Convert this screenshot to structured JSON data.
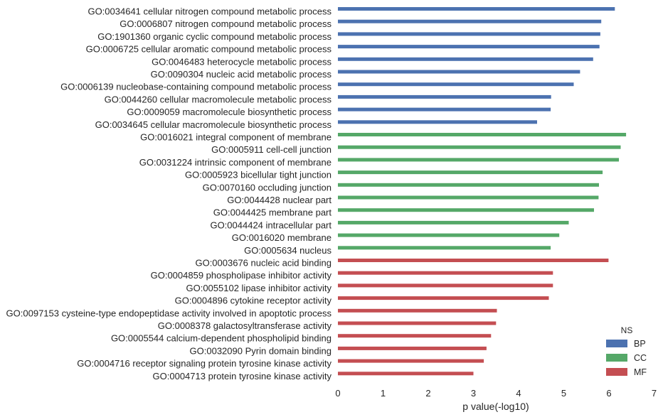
{
  "chart_data": {
    "type": "bar",
    "orientation": "horizontal",
    "xlabel": "p value(-log10)",
    "xlim": [
      0,
      7
    ],
    "xticks": [
      "0",
      "1",
      "2",
      "3",
      "4",
      "5",
      "6",
      "7"
    ],
    "grid": false,
    "legend_position": "bottom-right",
    "legend_title": "NS",
    "legend": [
      {
        "name": "BP",
        "color": "#4c72b0"
      },
      {
        "name": "CC",
        "color": "#55a868"
      },
      {
        "name": "MF",
        "color": "#c44e52"
      }
    ],
    "bars": [
      {
        "label": "GO:0034641 cellular nitrogen compound metabolic process",
        "value": 6.13,
        "ns": "BP"
      },
      {
        "label": "GO:0006807 nitrogen compound metabolic process",
        "value": 5.83,
        "ns": "BP"
      },
      {
        "label": "GO:1901360 organic cyclic compound metabolic process",
        "value": 5.81,
        "ns": "BP"
      },
      {
        "label": "GO:0006725 cellular aromatic compound metabolic process",
        "value": 5.79,
        "ns": "BP"
      },
      {
        "label": "GO:0046483 heterocycle metabolic process",
        "value": 5.65,
        "ns": "BP"
      },
      {
        "label": "GO:0090304 nucleic acid metabolic process",
        "value": 5.36,
        "ns": "BP"
      },
      {
        "label": "GO:0006139 nucleobase-containing compound metabolic process",
        "value": 5.22,
        "ns": "BP"
      },
      {
        "label": "GO:0044260 cellular macromolecule metabolic process",
        "value": 4.72,
        "ns": "BP"
      },
      {
        "label": "GO:0009059 macromolecule biosynthetic process",
        "value": 4.71,
        "ns": "BP"
      },
      {
        "label": "GO:0034645 cellular macromolecule biosynthetic process",
        "value": 4.41,
        "ns": "BP"
      },
      {
        "label": "GO:0016021 integral component of membrane",
        "value": 6.38,
        "ns": "CC"
      },
      {
        "label": "GO:0005911 cell-cell junction",
        "value": 6.26,
        "ns": "CC"
      },
      {
        "label": "GO:0031224 intrinsic component of membrane",
        "value": 6.22,
        "ns": "CC"
      },
      {
        "label": "GO:0005923 bicellular tight junction",
        "value": 5.86,
        "ns": "CC"
      },
      {
        "label": "GO:0070160 occluding junction",
        "value": 5.78,
        "ns": "CC"
      },
      {
        "label": "GO:0044428 nuclear part",
        "value": 5.77,
        "ns": "CC"
      },
      {
        "label": "GO:0044425 membrane part",
        "value": 5.67,
        "ns": "CC"
      },
      {
        "label": "GO:0044424 intracellular part",
        "value": 5.11,
        "ns": "CC"
      },
      {
        "label": "GO:0016020 membrane",
        "value": 4.9,
        "ns": "CC"
      },
      {
        "label": "GO:0005634 nucleus",
        "value": 4.71,
        "ns": "CC"
      },
      {
        "label": "GO:0003676 nucleic acid binding",
        "value": 5.99,
        "ns": "MF"
      },
      {
        "label": "GO:0004859 phospholipase inhibitor activity",
        "value": 4.76,
        "ns": "MF"
      },
      {
        "label": "GO:0055102 lipase inhibitor activity",
        "value": 4.76,
        "ns": "MF"
      },
      {
        "label": "GO:0004896 cytokine receptor activity",
        "value": 4.67,
        "ns": "MF"
      },
      {
        "label": "GO:0097153 cysteine-type endopeptidase activity involved in apoptotic process",
        "value": 3.52,
        "ns": "MF"
      },
      {
        "label": "GO:0008378 galactosyltransferase activity",
        "value": 3.5,
        "ns": "MF"
      },
      {
        "label": "GO:0005544 calcium-dependent phospholipid binding",
        "value": 3.39,
        "ns": "MF"
      },
      {
        "label": "GO:0032090 Pyrin domain binding",
        "value": 3.29,
        "ns": "MF"
      },
      {
        "label": "GO:0004716 receptor signaling protein tyrosine kinase activity",
        "value": 3.23,
        "ns": "MF"
      },
      {
        "label": "GO:0004713 protein tyrosine kinase activity",
        "value": 3.0,
        "ns": "MF"
      }
    ]
  }
}
